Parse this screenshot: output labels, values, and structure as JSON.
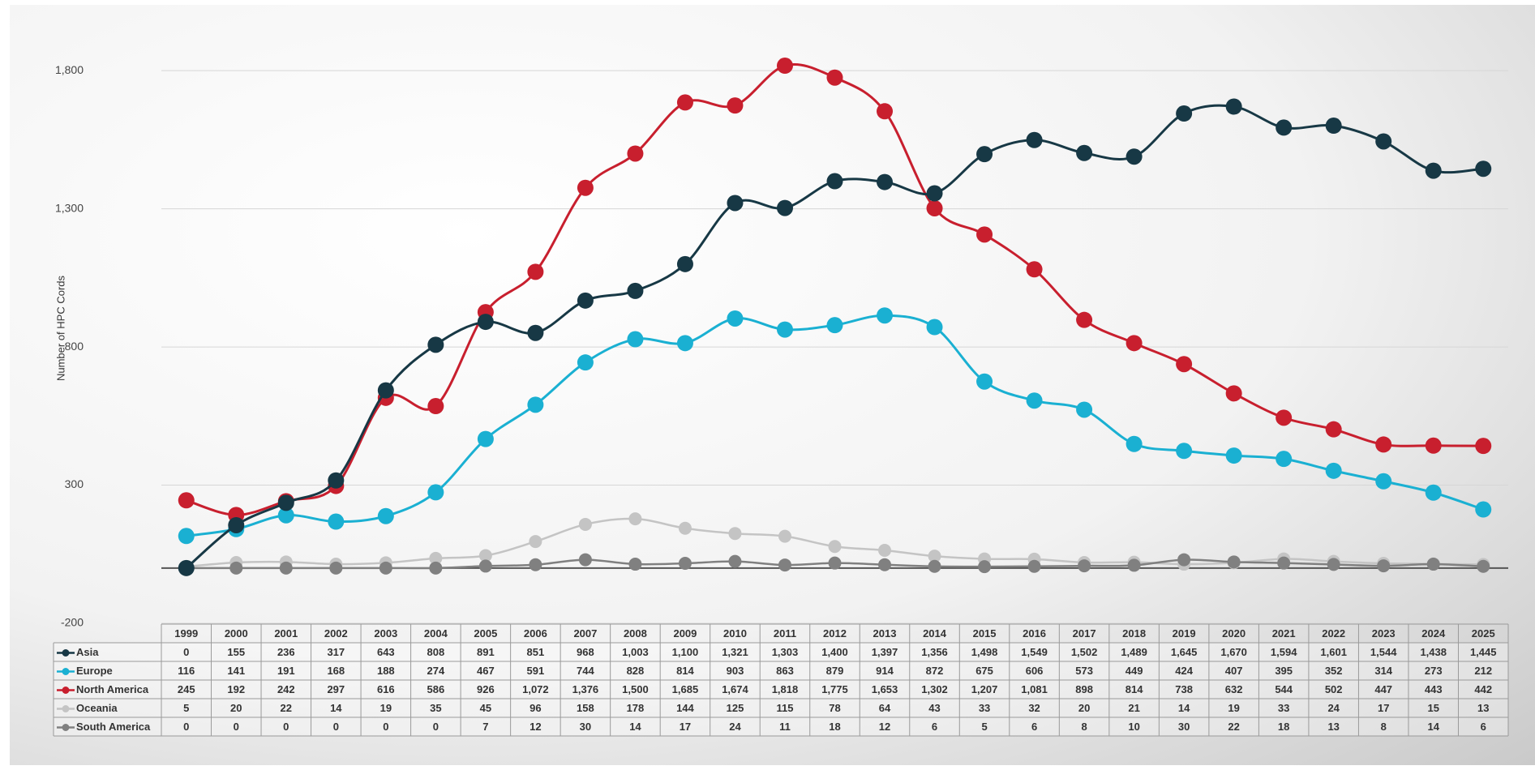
{
  "chart_data": {
    "type": "line",
    "y_label": "Number of HPC Cords",
    "categories": [
      "1999",
      "2000",
      "2001",
      "2002",
      "2003",
      "2004",
      "2005",
      "2006",
      "2007",
      "2008",
      "2009",
      "2010",
      "2011",
      "2012",
      "2013",
      "2014",
      "2015",
      "2016",
      "2017",
      "2018",
      "2019",
      "2020",
      "2021",
      "2022",
      "2023",
      "2024",
      "2025"
    ],
    "ylim": [
      -200,
      2000
    ],
    "yticks": [
      -200,
      300,
      800,
      {
        "value": 1300,
        "label": "1,300"
      },
      {
        "value": 1800,
        "label": "1,800"
      }
    ],
    "grid": true,
    "series": [
      {
        "name": "Asia",
        "color": "#173845",
        "values": [
          0,
          155,
          236,
          317,
          643,
          808,
          891,
          851,
          968,
          1003,
          1100,
          1321,
          1303,
          1400,
          1397,
          1356,
          1498,
          1549,
          1502,
          1489,
          1645,
          1670,
          1594,
          1601,
          1544,
          1438,
          1445
        ],
        "value_labels": [
          "0",
          "155",
          "236",
          "317",
          "643",
          "808",
          "891",
          "851",
          "968",
          "1,003",
          "1,100",
          "1,321",
          "1,303",
          "1,400",
          "1,397",
          "1,356",
          "1,498",
          "1,549",
          "1,502",
          "1,489",
          "1,645",
          "1,670",
          "1,594",
          "1,601",
          "1,544",
          "1,438",
          "1,445"
        ]
      },
      {
        "name": "Europe",
        "color": "#1ab0d2",
        "values": [
          116,
          141,
          191,
          168,
          188,
          274,
          467,
          591,
          744,
          828,
          814,
          903,
          863,
          879,
          914,
          872,
          675,
          606,
          573,
          449,
          424,
          407,
          395,
          352,
          314,
          273,
          212
        ]
      },
      {
        "name": "North America",
        "color": "#c81f2e",
        "values": [
          245,
          192,
          242,
          297,
          616,
          586,
          926,
          1072,
          1376,
          1500,
          1685,
          1674,
          1818,
          1775,
          1653,
          1302,
          1207,
          1081,
          898,
          814,
          738,
          632,
          544,
          502,
          447,
          443,
          442
        ],
        "value_labels": [
          "245",
          "192",
          "242",
          "297",
          "616",
          "586",
          "926",
          "1,072",
          "1,376",
          "1,500",
          "1,685",
          "1,674",
          "1,818",
          "1,775",
          "1,653",
          "1,302",
          "1,207",
          "1,081",
          "898",
          "814",
          "738",
          "632",
          "544",
          "502",
          "447",
          "443",
          "442"
        ]
      },
      {
        "name": "Oceania",
        "color": "#c4c4c4",
        "values": [
          5,
          20,
          22,
          14,
          19,
          35,
          45,
          96,
          158,
          178,
          144,
          125,
          115,
          78,
          64,
          43,
          33,
          32,
          20,
          21,
          14,
          19,
          33,
          24,
          17,
          15,
          13
        ]
      },
      {
        "name": "South America",
        "color": "#808080",
        "values": [
          0,
          0,
          0,
          0,
          0,
          0,
          7,
          12,
          30,
          14,
          17,
          24,
          11,
          18,
          12,
          6,
          5,
          6,
          8,
          10,
          30,
          22,
          18,
          13,
          8,
          14,
          6
        ]
      }
    ]
  }
}
